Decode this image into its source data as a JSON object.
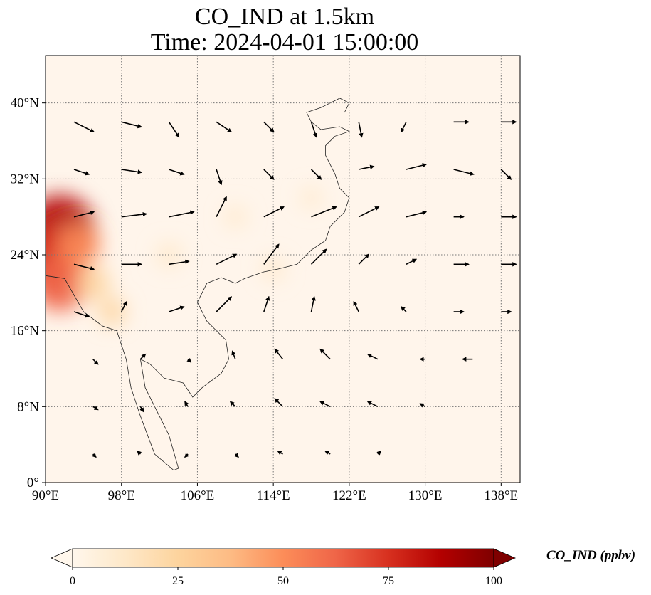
{
  "title_line1": "CO_IND at 1.5km",
  "title_line2": "Time: 2024-04-01 15:00:00",
  "map": {
    "lon_range": [
      90,
      140
    ],
    "lat_range": [
      0,
      45
    ],
    "lon_ticks": [
      {
        "value": 90,
        "label": "90°E"
      },
      {
        "value": 98,
        "label": "98°E"
      },
      {
        "value": 106,
        "label": "106°E"
      },
      {
        "value": 114,
        "label": "114°E"
      },
      {
        "value": 122,
        "label": "122°E"
      },
      {
        "value": 130,
        "label": "130°E"
      },
      {
        "value": 138,
        "label": "138°E"
      }
    ],
    "lat_ticks": [
      {
        "value": 0,
        "label": "0°"
      },
      {
        "value": 8,
        "label": "8°N"
      },
      {
        "value": 16,
        "label": "16°N"
      },
      {
        "value": 24,
        "label": "24°N"
      },
      {
        "value": 32,
        "label": "32°N"
      },
      {
        "value": 40,
        "label": "40°N"
      }
    ],
    "background_color": "#fff5eb",
    "gridlines": "dotted"
  },
  "colorbar": {
    "label": "CO_IND (ppbv)",
    "min": 0,
    "max": 100,
    "ticks": [
      {
        "value": 0,
        "label": "0"
      },
      {
        "value": 25,
        "label": "25"
      },
      {
        "value": 50,
        "label": "50"
      },
      {
        "value": 75,
        "label": "75"
      },
      {
        "value": 100,
        "label": "100"
      }
    ],
    "colormap": "OrRd",
    "colors": [
      "#fff7ec",
      "#fee8c8",
      "#fdd49e",
      "#fdbb84",
      "#fc8d59",
      "#ef6548",
      "#d7301f",
      "#b30000",
      "#7f0000"
    ],
    "extend": "both"
  },
  "hotspots": [
    {
      "lon": 91.5,
      "lat": 26.5,
      "value": 90
    },
    {
      "lon": 90.5,
      "lat": 23.5,
      "value": 80
    },
    {
      "lon": 91.5,
      "lat": 21.0,
      "value": 65
    },
    {
      "lon": 93.5,
      "lat": 25.0,
      "value": 45
    },
    {
      "lon": 95.0,
      "lat": 21.0,
      "value": 30
    },
    {
      "lon": 97.0,
      "lat": 18.0,
      "value": 20
    },
    {
      "lon": 103.0,
      "lat": 24.0,
      "value": 15
    },
    {
      "lon": 110.0,
      "lat": 28.0,
      "value": 10
    },
    {
      "lon": 114.0,
      "lat": 22.5,
      "value": 12
    },
    {
      "lon": 118.0,
      "lat": 30.0,
      "value": 8
    }
  ],
  "wind_vectors": [
    {
      "lon": 93,
      "lat": 38,
      "u": 2,
      "v": -1
    },
    {
      "lon": 98,
      "lat": 38,
      "u": 2,
      "v": -0.5
    },
    {
      "lon": 103,
      "lat": 38,
      "u": 1,
      "v": -1.5
    },
    {
      "lon": 108,
      "lat": 38,
      "u": 1.5,
      "v": -1
    },
    {
      "lon": 113,
      "lat": 38,
      "u": 1,
      "v": -1
    },
    {
      "lon": 118,
      "lat": 38,
      "u": 0.5,
      "v": -1.5
    },
    {
      "lon": 123,
      "lat": 38,
      "u": 0.3,
      "v": -1.5
    },
    {
      "lon": 128,
      "lat": 38,
      "u": -0.5,
      "v": -1
    },
    {
      "lon": 133,
      "lat": 38,
      "u": 1.5,
      "v": 0
    },
    {
      "lon": 138,
      "lat": 38,
      "u": 1.5,
      "v": 0
    },
    {
      "lon": 93,
      "lat": 33,
      "u": 1.5,
      "v": -0.5
    },
    {
      "lon": 98,
      "lat": 33,
      "u": 2,
      "v": -0.3
    },
    {
      "lon": 103,
      "lat": 33,
      "u": 1.5,
      "v": -0.5
    },
    {
      "lon": 108,
      "lat": 33,
      "u": 0.5,
      "v": -1.5
    },
    {
      "lon": 113,
      "lat": 33,
      "u": 1,
      "v": -1
    },
    {
      "lon": 118,
      "lat": 33,
      "u": 1,
      "v": -1
    },
    {
      "lon": 123,
      "lat": 33,
      "u": 1.5,
      "v": 0.3
    },
    {
      "lon": 128,
      "lat": 33,
      "u": 2,
      "v": 0.5
    },
    {
      "lon": 133,
      "lat": 33,
      "u": 2,
      "v": -0.5
    },
    {
      "lon": 138,
      "lat": 33,
      "u": 1,
      "v": -1
    },
    {
      "lon": 93,
      "lat": 28,
      "u": 2,
      "v": 0.5
    },
    {
      "lon": 98,
      "lat": 28,
      "u": 2.5,
      "v": 0.3
    },
    {
      "lon": 103,
      "lat": 28,
      "u": 2.5,
      "v": 0.5
    },
    {
      "lon": 108,
      "lat": 28,
      "u": 1,
      "v": 2
    },
    {
      "lon": 113,
      "lat": 28,
      "u": 2,
      "v": 1
    },
    {
      "lon": 118,
      "lat": 28,
      "u": 2.5,
      "v": 1
    },
    {
      "lon": 123,
      "lat": 28,
      "u": 2,
      "v": 1
    },
    {
      "lon": 128,
      "lat": 28,
      "u": 2,
      "v": 0.5
    },
    {
      "lon": 133,
      "lat": 28,
      "u": 1,
      "v": 0
    },
    {
      "lon": 138,
      "lat": 28,
      "u": 1.5,
      "v": 0
    },
    {
      "lon": 93,
      "lat": 23,
      "u": 2,
      "v": -0.5
    },
    {
      "lon": 98,
      "lat": 23,
      "u": 2,
      "v": 0
    },
    {
      "lon": 103,
      "lat": 23,
      "u": 2,
      "v": 0.3
    },
    {
      "lon": 108,
      "lat": 23,
      "u": 2,
      "v": 1
    },
    {
      "lon": 113,
      "lat": 23,
      "u": 1.5,
      "v": 2
    },
    {
      "lon": 118,
      "lat": 23,
      "u": 1.5,
      "v": 1.5
    },
    {
      "lon": 123,
      "lat": 23,
      "u": 1,
      "v": 1
    },
    {
      "lon": 128,
      "lat": 23,
      "u": 1,
      "v": 0.5
    },
    {
      "lon": 133,
      "lat": 23,
      "u": 1.5,
      "v": 0
    },
    {
      "lon": 138,
      "lat": 23,
      "u": 1.5,
      "v": 0
    },
    {
      "lon": 93,
      "lat": 18,
      "u": 1.5,
      "v": -0.5
    },
    {
      "lon": 98,
      "lat": 18,
      "u": 0.5,
      "v": 1
    },
    {
      "lon": 103,
      "lat": 18,
      "u": 1.5,
      "v": 0.5
    },
    {
      "lon": 108,
      "lat": 18,
      "u": 1.5,
      "v": 1.5
    },
    {
      "lon": 113,
      "lat": 18,
      "u": 0.5,
      "v": 1.5
    },
    {
      "lon": 118,
      "lat": 18,
      "u": 0.3,
      "v": 1.5
    },
    {
      "lon": 123,
      "lat": 18,
      "u": -0.5,
      "v": 1
    },
    {
      "lon": 128,
      "lat": 18,
      "u": -0.5,
      "v": 0.5
    },
    {
      "lon": 133,
      "lat": 18,
      "u": 1,
      "v": 0
    },
    {
      "lon": 138,
      "lat": 18,
      "u": 1,
      "v": 0
    },
    {
      "lon": 95,
      "lat": 13,
      "u": 0.5,
      "v": -0.5
    },
    {
      "lon": 100,
      "lat": 13,
      "u": 0.5,
      "v": 0.5
    },
    {
      "lon": 105,
      "lat": 13,
      "u": 0.3,
      "v": -0.3
    },
    {
      "lon": 110,
      "lat": 13,
      "u": -0.3,
      "v": 0.8
    },
    {
      "lon": 115,
      "lat": 13,
      "u": -0.8,
      "v": 1
    },
    {
      "lon": 120,
      "lat": 13,
      "u": -1,
      "v": 1
    },
    {
      "lon": 125,
      "lat": 13,
      "u": -1,
      "v": 0.5
    },
    {
      "lon": 130,
      "lat": 13,
      "u": -0.5,
      "v": 0
    },
    {
      "lon": 135,
      "lat": 13,
      "u": -1,
      "v": 0
    },
    {
      "lon": 95,
      "lat": 8,
      "u": 0.5,
      "v": -0.3
    },
    {
      "lon": 100,
      "lat": 8,
      "u": 0.3,
      "v": -0.5
    },
    {
      "lon": 105,
      "lat": 8,
      "u": -0.3,
      "v": 0.5
    },
    {
      "lon": 110,
      "lat": 8,
      "u": -0.5,
      "v": 0.5
    },
    {
      "lon": 115,
      "lat": 8,
      "u": -0.8,
      "v": 0.8
    },
    {
      "lon": 120,
      "lat": 8,
      "u": -1,
      "v": 0.5
    },
    {
      "lon": 125,
      "lat": 8,
      "u": -1,
      "v": 0.5
    },
    {
      "lon": 130,
      "lat": 8,
      "u": -0.5,
      "v": 0.3
    },
    {
      "lon": 95,
      "lat": 3,
      "u": 0.3,
      "v": -0.3
    },
    {
      "lon": 100,
      "lat": 3,
      "u": -0.3,
      "v": 0.3
    },
    {
      "lon": 105,
      "lat": 3,
      "u": -0.3,
      "v": -0.3
    },
    {
      "lon": 110,
      "lat": 3,
      "u": 0.3,
      "v": -0.3
    },
    {
      "lon": 115,
      "lat": 3,
      "u": -0.5,
      "v": 0.3
    },
    {
      "lon": 120,
      "lat": 3,
      "u": -0.5,
      "v": 0.3
    },
    {
      "lon": 125,
      "lat": 3,
      "u": 0.3,
      "v": 0.3
    }
  ]
}
